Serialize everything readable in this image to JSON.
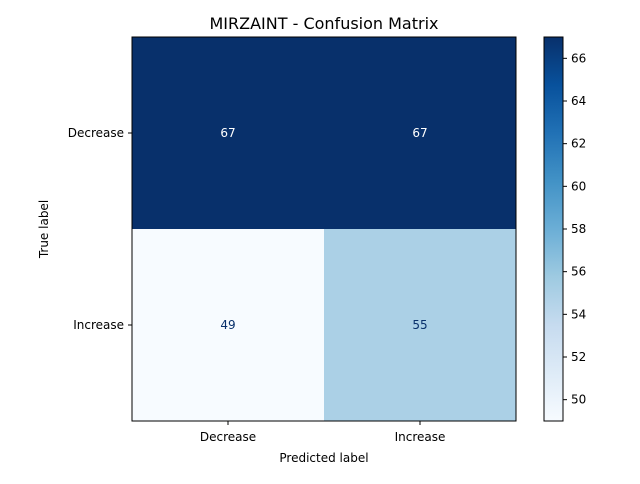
{
  "chart_data": {
    "type": "heatmap",
    "title": "MIRZAINT - Confusion Matrix",
    "xlabel": "Predicted label",
    "ylabel": "True label",
    "x_categories": [
      "Decrease",
      "Increase"
    ],
    "y_categories": [
      "Decrease",
      "Increase"
    ],
    "values": [
      [
        67,
        67
      ],
      [
        49,
        55
      ]
    ],
    "colormap": "Blues",
    "colorbar": {
      "min": 49,
      "max": 67,
      "ticks": [
        50,
        52,
        54,
        56,
        58,
        60,
        62,
        64,
        66
      ]
    },
    "text_colors": {
      "dark_cell": "#ffffff",
      "light_cell": "#08306b"
    },
    "grid": false
  }
}
